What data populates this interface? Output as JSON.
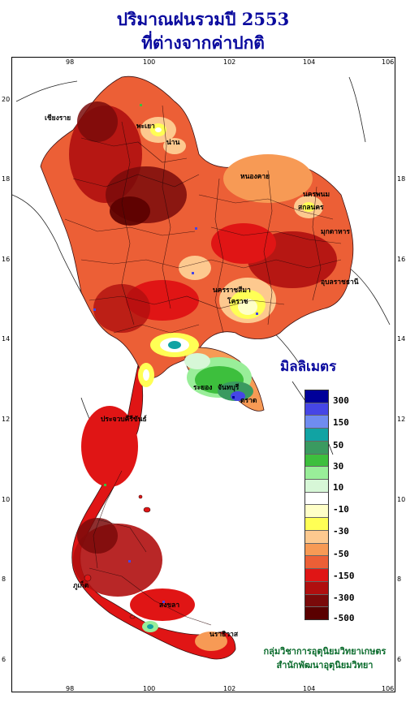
{
  "title": {
    "line1": "ปริมาณฝนรวมปี 2553",
    "line2": "ที่ต่างจากค่าปกติ"
  },
  "axes": {
    "x_ticks": [
      "98",
      "100",
      "102",
      "104",
      "106"
    ],
    "y_ticks": [
      "20",
      "18",
      "16",
      "14",
      "12",
      "10",
      "8",
      "6"
    ]
  },
  "legend": {
    "title": "มิลลิเมตร",
    "colors": [
      "#000099",
      "#4646e6",
      "#6f8cf0",
      "#11a3a3",
      "#3a9a60",
      "#3dbf3d",
      "#99ee99",
      "#d7f7d7",
      "#ffffff",
      "#ffffc8",
      "#ffff55",
      "#fdc98f",
      "#f79a55",
      "#ec5f36",
      "#e01515",
      "#b00f0f",
      "#7a0a0a",
      "#5a0000"
    ],
    "labels": [
      "300",
      "150",
      "50",
      "30",
      "10",
      "-10",
      "-30",
      "-50",
      "-150",
      "-300",
      "-500"
    ]
  },
  "credits": {
    "line1": "กลุ่มวิชาการอุตุนิยมวิทยาเกษตร",
    "line2": "สำนักพัฒนาอุตุนิยมวิทยา"
  },
  "province_labels": [
    "เชียงราย",
    "พะเยา",
    "น่าน",
    "หนองคาย",
    "นครพนม",
    "สกลนคร",
    "มุกดาหาร",
    "อุบลราชธานี",
    "นครราชสีมา",
    "โคราช",
    "ระยอง",
    "จันทบุรี",
    "ตราด",
    "ประจวบคีรีขันธ์",
    "ภูเก็ต",
    "สงขลา",
    "นราธิวาส"
  ]
}
